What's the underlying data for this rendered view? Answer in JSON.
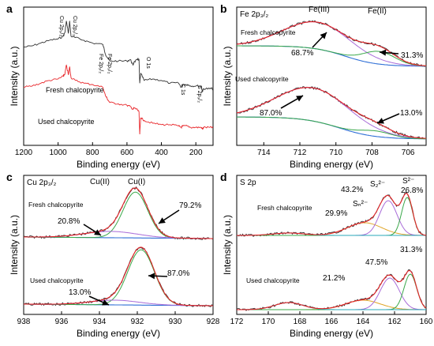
{
  "chart_data": [
    {
      "type": "line",
      "panel_label": "a",
      "xlabel": "Binding energy (eV)",
      "ylabel": "Intensity (a.u.)",
      "xlim": [
        1200,
        100
      ],
      "xticks": [
        "1200",
        "1000",
        "800",
        "600",
        "400",
        "200"
      ],
      "series": [
        {
          "name": "Fresh chalcopyrite",
          "color": "#333333",
          "x": [
            1200,
            1150,
            1100,
            1050,
            1000,
            970,
            960,
            952,
            940,
            933,
            925,
            900,
            850,
            800,
            740,
            725,
            711,
            700,
            650,
            600,
            580,
            565,
            560,
            540,
            530,
            526,
            520,
            500,
            450,
            400,
            350,
            300,
            285,
            275,
            250,
            230,
            200,
            170,
            162,
            155,
            120,
            100
          ],
          "y": [
            0.71,
            0.72,
            0.74,
            0.76,
            0.77,
            0.79,
            0.82,
            0.9,
            0.81,
            0.9,
            0.79,
            0.78,
            0.76,
            0.74,
            0.73,
            0.66,
            0.63,
            0.61,
            0.61,
            0.61,
            0.62,
            0.58,
            0.6,
            0.62,
            0.62,
            0.45,
            0.52,
            0.47,
            0.48,
            0.47,
            0.45,
            0.45,
            0.42,
            0.44,
            0.44,
            0.43,
            0.43,
            0.43,
            0.39,
            0.41,
            0.41,
            0.41
          ]
        },
        {
          "name": "Used chalcopyrite",
          "color": "#e8262a",
          "x": [
            1200,
            1150,
            1100,
            1050,
            1000,
            970,
            960,
            952,
            940,
            933,
            925,
            900,
            850,
            800,
            740,
            725,
            711,
            700,
            650,
            600,
            580,
            565,
            560,
            540,
            530,
            526,
            520,
            500,
            450,
            400,
            350,
            300,
            285,
            275,
            250,
            230,
            200,
            170,
            162,
            155,
            120,
            100
          ],
          "y": [
            0.42,
            0.43,
            0.45,
            0.47,
            0.48,
            0.5,
            0.52,
            0.58,
            0.51,
            0.57,
            0.49,
            0.47,
            0.45,
            0.44,
            0.42,
            0.36,
            0.33,
            0.31,
            0.3,
            0.29,
            0.28,
            0.26,
            0.27,
            0.26,
            0.24,
            0.08,
            0.2,
            0.18,
            0.16,
            0.15,
            0.15,
            0.14,
            0.13,
            0.14,
            0.14,
            0.13,
            0.13,
            0.13,
            0.12,
            0.13,
            0.13,
            0.13
          ]
        }
      ],
      "peak_labels": [
        "Cu 2p₃/₂",
        "Cu 2p₁/₂",
        "Fe 2p₁/₂",
        "Fe 2p₃/₂",
        "O 1s",
        "C 1s",
        "S 2p₃/₂"
      ],
      "annotations": [
        "Fresh chalcopyrite",
        "Used chalcopyrite"
      ]
    },
    {
      "type": "line",
      "panel_label": "b",
      "title": "Fe 2p₃/₂",
      "xlabel": "Binding energy (eV)",
      "ylabel": "Intensity (a.u.)",
      "xlim": [
        715.5,
        705
      ],
      "xticks": [
        "714",
        "712",
        "710",
        "708",
        "706"
      ],
      "components": [
        "Fe(III)",
        "Fe(II)"
      ],
      "fresh": {
        "name": "Fresh chalcopyrite",
        "percentages": [
          "68.7%",
          "31.3%"
        ]
      },
      "used": {
        "name": "Used chalcopyrite",
        "percentages": [
          "87.0%",
          "13.0%"
        ]
      }
    },
    {
      "type": "line",
      "panel_label": "c",
      "title": "Cu 2p₃/₂",
      "xlabel": "Binding energy (eV)",
      "ylabel": "Intensity (a.u.)",
      "xlim": [
        938,
        928
      ],
      "xticks": [
        "938",
        "936",
        "934",
        "932",
        "930",
        "928"
      ],
      "components": [
        "Cu(II)",
        "Cu(I)"
      ],
      "fresh": {
        "name": "Fresh chalcopyrite",
        "percentages": [
          "20.8%",
          "79.2%"
        ]
      },
      "used": {
        "name": "Used chalcopyrite",
        "percentages": [
          "13.0%",
          "87.0%"
        ]
      }
    },
    {
      "type": "line",
      "panel_label": "d",
      "title": "S 2p",
      "xlabel": "Binding energy (eV)",
      "ylabel": "Intensity (a.u.)",
      "xlim": [
        172,
        160
      ],
      "xticks": [
        "172",
        "170",
        "168",
        "166",
        "164",
        "162",
        "160"
      ],
      "components": [
        "Sₙ²⁻",
        "S₂²⁻",
        "S²⁻"
      ],
      "fresh": {
        "name": "Fresh chalcopyrite",
        "percentages": [
          "29.9%",
          "43.2%",
          "26.8%"
        ]
      },
      "used": {
        "name": "Used chalcopyrite",
        "percentages": [
          "21.2%",
          "47.5%",
          "31.3%"
        ]
      }
    }
  ]
}
